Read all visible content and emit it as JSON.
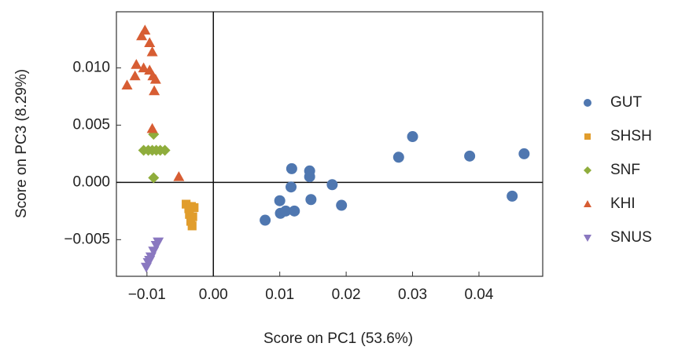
{
  "chart_data": {
    "type": "scatter",
    "x_label": "Score on PC1 (53.6%)",
    "y_label": "Score on PC3 (8.29%)",
    "xlim": [
      -0.0146,
      0.0496
    ],
    "ylim": [
      -0.0082,
      0.0149
    ],
    "xticks": [
      {
        "value": -0.01,
        "label": "−0.01"
      },
      {
        "value": 0,
        "label": "0.00"
      },
      0.01,
      0.02,
      0.03,
      0.04
    ],
    "yticks": [
      {
        "value": -0.005,
        "label": "−0.005"
      },
      {
        "value": 0,
        "label": "0.000"
      },
      0.005,
      {
        "value": 0.01,
        "label": "0.010"
      }
    ],
    "zero_lines": true,
    "series": [
      {
        "name": "GUT",
        "color": "#4f77b0",
        "marker": "circle",
        "x": [
          0.0078,
          0.0101,
          0.0109,
          0.0122,
          0.01,
          0.0118,
          0.0145,
          0.0145,
          0.0117,
          0.0147,
          0.0179,
          0.0193,
          0.0279,
          0.03,
          0.0386,
          0.045,
          0.0468
        ],
        "y": [
          -0.0033,
          -0.0027,
          -0.0025,
          -0.0025,
          -0.0016,
          0.0012,
          0.001,
          0.0005,
          -0.0004,
          -0.0015,
          -0.0002,
          -0.002,
          0.0022,
          0.004,
          0.0023,
          -0.0012,
          0.0025
        ]
      },
      {
        "name": "SHSH",
        "color": "#e19d2c",
        "marker": "square",
        "x": [
          -0.0041,
          -0.0037,
          -0.0033,
          -0.0029,
          -0.0036,
          -0.0031,
          -0.0034,
          -0.0032
        ],
        "y": [
          -0.0019,
          -0.0023,
          -0.0021,
          -0.0022,
          -0.0028,
          -0.003,
          -0.0034,
          -0.0038
        ]
      },
      {
        "name": "SNF",
        "color": "#8fad3c",
        "marker": "diamond",
        "x": [
          -0.0105,
          -0.0098,
          -0.0092,
          -0.0086,
          -0.008,
          -0.0073,
          -0.009,
          -0.009
        ],
        "y": [
          0.0028,
          0.0028,
          0.0028,
          0.0028,
          0.0028,
          0.0028,
          0.0042,
          0.0004
        ]
      },
      {
        "name": "KHI",
        "color": "#d75d33",
        "marker": "triangle",
        "x": [
          -0.0103,
          -0.0108,
          -0.0096,
          -0.0092,
          -0.0116,
          -0.0105,
          -0.0096,
          -0.013,
          -0.0091,
          -0.0087,
          -0.0089,
          -0.0118,
          -0.0092,
          -0.0052
        ],
        "y": [
          0.0133,
          0.0128,
          0.0122,
          0.0114,
          0.0103,
          0.01,
          0.0098,
          0.0085,
          0.0093,
          0.009,
          0.008,
          0.0093,
          0.0047,
          0.0005
        ]
      },
      {
        "name": "SNUS",
        "color": "#8a78c0",
        "marker": "triangle-down",
        "x": [
          -0.0083,
          -0.0086,
          -0.009,
          -0.0094,
          -0.0098,
          -0.0101,
          -0.0096
        ],
        "y": [
          -0.0052,
          -0.0055,
          -0.006,
          -0.0065,
          -0.007,
          -0.0074,
          -0.0068
        ]
      }
    ]
  }
}
